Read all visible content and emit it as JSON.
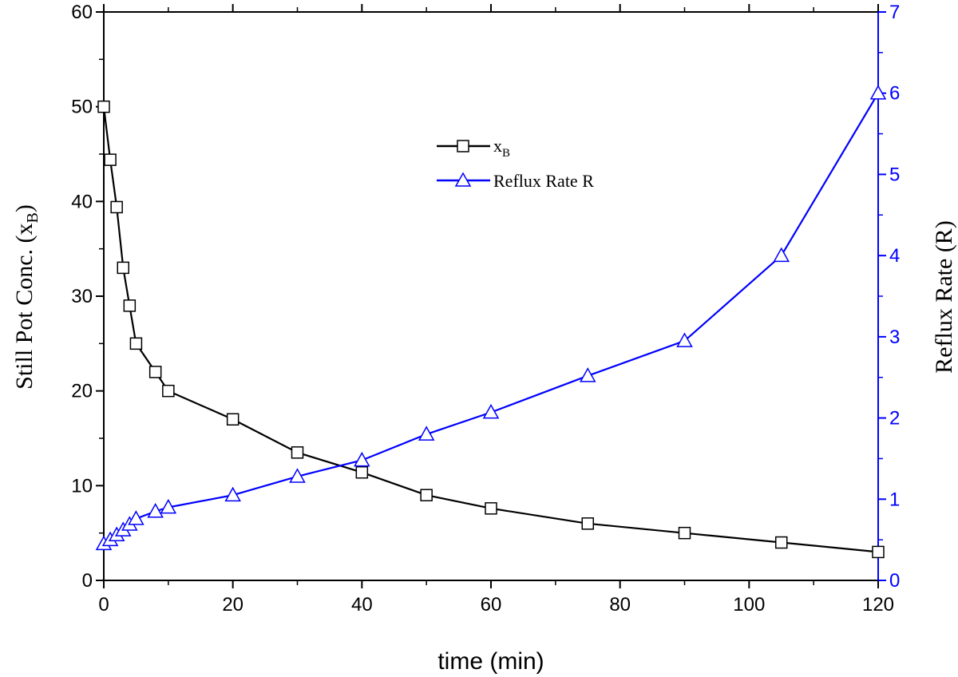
{
  "chart_data": {
    "type": "line",
    "x_axis": {
      "label": "time (min)",
      "lim": [
        0,
        120
      ],
      "ticks": [
        0,
        20,
        40,
        60,
        80,
        100,
        120
      ]
    },
    "y_left": {
      "label_main": "Still Pot Conc. (x",
      "label_sub": "B",
      "label_close": ")",
      "lim": [
        0,
        60
      ],
      "ticks": [
        0,
        10,
        20,
        30,
        40,
        50,
        60
      ]
    },
    "y_right": {
      "label": "Reflux Rate (R)",
      "lim": [
        0,
        7
      ],
      "ticks": [
        0,
        1,
        2,
        3,
        4,
        5,
        6,
        7
      ],
      "color": "#0000ff"
    },
    "legend_position": "upper-center",
    "grid": false,
    "series": [
      {
        "name": "x",
        "name_sub": "B",
        "axis": "left",
        "marker": "square",
        "color": "#000000",
        "x": [
          0,
          1,
          2,
          3,
          4,
          5,
          8,
          10,
          20,
          30,
          40,
          50,
          60,
          75,
          90,
          105,
          120
        ],
        "y": [
          50,
          44.4,
          39.4,
          33,
          29,
          25,
          22,
          20,
          17,
          13.5,
          11.4,
          9,
          7.6,
          6,
          5,
          4,
          3
        ]
      },
      {
        "name": "Reflux Rate R",
        "axis": "right",
        "marker": "triangle",
        "color": "#0000ff",
        "x": [
          0,
          1,
          2,
          3,
          4,
          5,
          8,
          10,
          20,
          30,
          40,
          50,
          60,
          75,
          90,
          105,
          120
        ],
        "y": [
          0.45,
          0.5,
          0.56,
          0.62,
          0.69,
          0.76,
          0.85,
          0.9,
          1.05,
          1.28,
          1.48,
          1.8,
          2.07,
          2.52,
          2.95,
          4.0,
          6.0
        ]
      }
    ]
  }
}
